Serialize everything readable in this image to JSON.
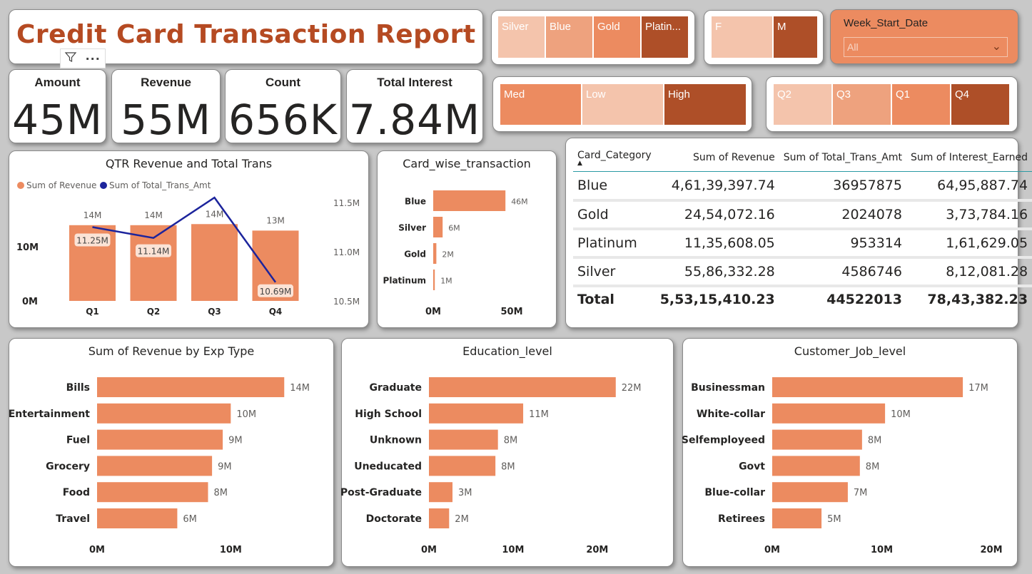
{
  "header": {
    "title": "Credit Card Transaction Report"
  },
  "kpis": [
    {
      "label": "Amount",
      "value": "45M"
    },
    {
      "label": "Revenue",
      "value": "55M"
    },
    {
      "label": "Count",
      "value": "656K"
    },
    {
      "label": "Total Interest",
      "value": "7.84M"
    }
  ],
  "slicers": {
    "card": [
      "Silver",
      "Blue",
      "Gold",
      "Platin..."
    ],
    "gender": [
      "F",
      "M"
    ],
    "interest": [
      "Med",
      "Low",
      "High"
    ],
    "quarter": [
      "Q2",
      "Q3",
      "Q1",
      "Q4"
    ],
    "week": {
      "label": "Week_Start_Date",
      "value": "All"
    }
  },
  "colors": {
    "bar": "#ec8b60",
    "line": "#1c249c",
    "title": "#b54a22",
    "tile_light": "#f4c4ac",
    "tile_mid": "#eeA27e",
    "tile_main": "#ec8b60",
    "tile_dark": "#ae4f28",
    "week_bg": "#ec8b60"
  },
  "focus_icons": {
    "filter": "filter-icon",
    "more": "more-options-icon"
  },
  "qtr_chart": {
    "title": "QTR Revenue and Total Trans",
    "legend": [
      "Sum of Revenue",
      "Sum of Total_Trans_Amt"
    ],
    "left_ticks": [
      "10M",
      "0M"
    ],
    "right_ticks": [
      "11.5M",
      "11.0M",
      "10.5M"
    ],
    "bar_labels": [
      "14M",
      "14M",
      "14M",
      "13M"
    ],
    "line_labels": [
      "11.25M",
      "11.14M",
      "",
      "10.69M"
    ],
    "categories": [
      "Q1",
      "Q2",
      "Q3",
      "Q4"
    ]
  },
  "table": {
    "columns": [
      "Card_Category",
      "Sum of Revenue",
      "Sum of Total_Trans_Amt",
      "Sum of Interest_Earned"
    ],
    "rows": [
      [
        "Blue",
        "4,61,39,397.74",
        "36957875",
        "64,95,887.74"
      ],
      [
        "Gold",
        "24,54,072.16",
        "2024078",
        "3,73,784.16"
      ],
      [
        "Platinum",
        "11,35,608.05",
        "953314",
        "1,61,629.05"
      ],
      [
        "Silver",
        "55,86,332.28",
        "4586746",
        "8,12,081.28"
      ]
    ],
    "total": [
      "Total",
      "5,53,15,410.23",
      "44522013",
      "78,43,382.23"
    ]
  },
  "chart_data": [
    {
      "type": "bar",
      "title": "QTR Revenue and Total Trans",
      "categories": [
        "Q1",
        "Q2",
        "Q3",
        "Q4"
      ],
      "series": [
        {
          "name": "Sum of Revenue",
          "values": [
            14,
            14,
            14.2,
            13
          ],
          "labels": [
            "14M",
            "14M",
            "14M",
            "13M"
          ]
        },
        {
          "name": "Sum of Total_Trans_Amt",
          "type": "line",
          "values": [
            11.25,
            11.14,
            11.55,
            10.69
          ],
          "labels": [
            "11.25M",
            "11.14M",
            "",
            "10.69M"
          ]
        }
      ],
      "ylim": [
        0,
        14.5
      ],
      "y2lim": [
        10.5,
        11.5
      ]
    },
    {
      "type": "bar",
      "title": "Card_wise_transaction",
      "categories": [
        "Blue",
        "Silver",
        "Gold",
        "Platinum"
      ],
      "values": [
        46,
        6,
        2,
        1
      ],
      "labels": [
        "46M",
        "6M",
        "2M",
        "1M"
      ],
      "xticks": [
        "0M",
        "50M"
      ],
      "xlim": [
        0,
        50
      ]
    },
    {
      "type": "bar",
      "title": "Sum of Revenue by Exp Type",
      "categories": [
        "Bills",
        "Entertainment",
        "Fuel",
        "Grocery",
        "Food",
        "Travel"
      ],
      "values": [
        14,
        10,
        9.4,
        8.6,
        8.3,
        6
      ],
      "labels": [
        "14M",
        "10M",
        "9M",
        "9M",
        "8M",
        "6M"
      ],
      "xticks": [
        "0M",
        "10M"
      ],
      "xlim": [
        0,
        15
      ]
    },
    {
      "type": "bar",
      "title": "Education_level",
      "categories": [
        "Graduate",
        "High School",
        "Unknown",
        "Uneducated",
        "Post-Graduate",
        "Doctorate"
      ],
      "values": [
        22.2,
        11.2,
        8.2,
        7.9,
        2.8,
        2.4
      ],
      "labels": [
        "22M",
        "11M",
        "8M",
        "8M",
        "3M",
        "2M"
      ],
      "xticks": [
        "0M",
        "10M",
        "20M"
      ],
      "xlim": [
        0,
        24
      ]
    },
    {
      "type": "bar",
      "title": "Customer_Job_level",
      "categories": [
        "Businessman",
        "White-collar",
        "Selfemployeed",
        "Govt",
        "Blue-collar",
        "Retirees"
      ],
      "values": [
        17.4,
        10.3,
        8.2,
        8.0,
        6.9,
        4.5
      ],
      "labels": [
        "17M",
        "10M",
        "8M",
        "8M",
        "7M",
        "5M"
      ],
      "xticks": [
        "0M",
        "10M",
        "20M"
      ],
      "xlim": [
        0,
        20
      ]
    }
  ]
}
